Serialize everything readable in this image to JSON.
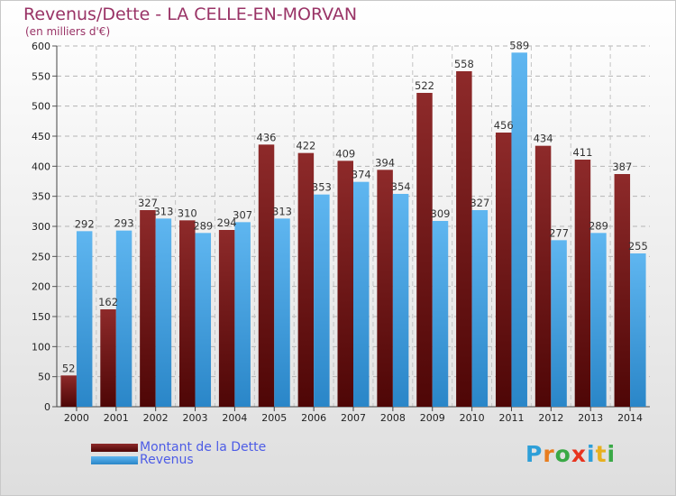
{
  "title": "Revenus/Dette - LA CELLE-EN-MORVAN",
  "subtitle": "(en milliers d'€)",
  "legend": [
    {
      "label": "Montant de la Dette",
      "color": "#7a1a1a"
    },
    {
      "label": "Revenus",
      "color": "#3f9ee0"
    }
  ],
  "logo": {
    "letters": [
      "P",
      "r",
      "o",
      "x",
      "i",
      "t",
      "i"
    ],
    "colors": [
      "#2e9fd8",
      "#e87d1e",
      "#3aa946",
      "#e8331e",
      "#2e9fd8",
      "#e8b01e",
      "#3aa946"
    ]
  },
  "chart_data": {
    "type": "bar",
    "title": "Revenus/Dette - LA CELLE-EN-MORVAN",
    "subtitle": "(en milliers d'€)",
    "categories": [
      "2000",
      "2001",
      "2002",
      "2003",
      "2004",
      "2005",
      "2006",
      "2007",
      "2008",
      "2009",
      "2010",
      "2011",
      "2012",
      "2013",
      "2014"
    ],
    "series": [
      {
        "name": "Montant de la Dette",
        "color": "#7a1a1a",
        "values": [
          52,
          162,
          327,
          310,
          294,
          436,
          422,
          409,
          394,
          522,
          558,
          456,
          434,
          411,
          387
        ]
      },
      {
        "name": "Revenus",
        "color": "#3f9ee0",
        "values": [
          292,
          293,
          313,
          289,
          307,
          313,
          353,
          374,
          354,
          309,
          327,
          589,
          277,
          289,
          255
        ]
      }
    ],
    "yticks": [
      0,
      50,
      100,
      150,
      200,
      250,
      300,
      350,
      400,
      450,
      500,
      550,
      600
    ],
    "ylim": [
      0,
      600
    ],
    "grid": true,
    "legend_position": "bottom-left"
  }
}
